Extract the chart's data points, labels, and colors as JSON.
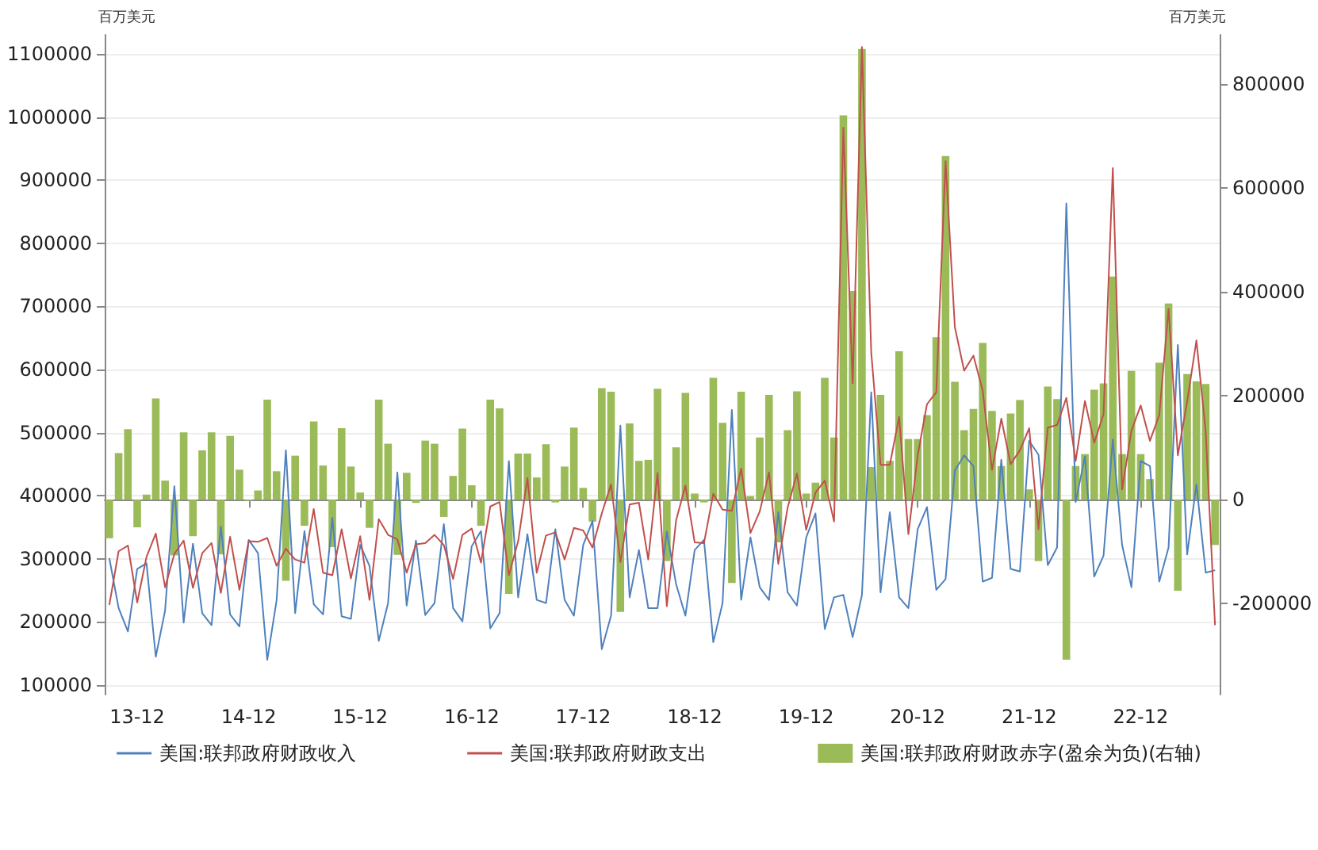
{
  "chart_data": {
    "type": "bar",
    "ylabel": "百万美元",
    "y2label": "百万美元",
    "categories": [
      null,
      null,
      null,
      "13-12",
      null,
      null,
      null,
      null,
      null,
      null,
      null,
      null,
      null,
      null,
      null,
      "14-12",
      null,
      null,
      null,
      null,
      null,
      null,
      null,
      null,
      null,
      null,
      null,
      "15-12",
      null,
      null,
      null,
      null,
      null,
      null,
      null,
      null,
      null,
      null,
      null,
      "16-12",
      null,
      null,
      null,
      null,
      null,
      null,
      null,
      null,
      null,
      null,
      null,
      "17-12",
      null,
      null,
      null,
      null,
      null,
      null,
      null,
      null,
      null,
      null,
      null,
      "18-12",
      null,
      null,
      null,
      null,
      null,
      null,
      null,
      null,
      null,
      null,
      null,
      "19-12",
      null,
      null,
      null,
      null,
      null,
      null,
      null,
      null,
      null,
      null,
      null,
      "20-12",
      null,
      null,
      null,
      null,
      null,
      null,
      null,
      null,
      null,
      null,
      null,
      "21-12",
      null,
      null,
      null,
      null,
      null,
      null,
      null,
      null,
      null,
      null,
      null,
      "22-12",
      null,
      null,
      null,
      null,
      null,
      null,
      null,
      null
    ],
    "series": [
      {
        "name": "美国:联邦政府财政收入",
        "type": "line",
        "color": "#4f81bd",
        "values": [
          301000,
          222000,
          185000,
          284000,
          293000,
          145000,
          218000,
          415000,
          199000,
          324000,
          214000,
          195000,
          351000,
          212000,
          193000,
          330000,
          309000,
          140000,
          234000,
          472000,
          214000,
          344000,
          228000,
          212000,
          365000,
          209000,
          205000,
          322000,
          289000,
          170000,
          230000,
          437000,
          226000,
          329000,
          211000,
          230000,
          355000,
          222000,
          201000,
          320000,
          344000,
          190000,
          214000,
          455000,
          239000,
          339000,
          235000,
          230000,
          347000,
          235000,
          210000,
          322000,
          360000,
          157000,
          210000,
          511000,
          239000,
          314000,
          222000,
          222000,
          343000,
          260000,
          210000,
          314000,
          330000,
          168000,
          230000,
          536000,
          235000,
          334000,
          255000,
          235000,
          374000,
          247000,
          226000,
          334000,
          372000,
          189000,
          239000,
          243000,
          176000,
          243000,
          564000,
          247000,
          374000,
          239000,
          222000,
          347000,
          382000,
          251000,
          268000,
          440000,
          464000,
          447000,
          264000,
          270000,
          457000,
          284000,
          280000,
          487000,
          465000,
          290000,
          318000,
          863000,
          390000,
          462000,
          272000,
          305000,
          489000,
          322000,
          255000,
          455000,
          447000,
          264000,
          318000,
          639000,
          307000,
          418000,
          278000,
          282000
        ]
      },
      {
        "name": "美国:联邦政府财政支出",
        "type": "line",
        "color": "#c0504d",
        "values": [
          227000,
          312000,
          321000,
          231000,
          303000,
          340000,
          255000,
          308000,
          329000,
          254000,
          309000,
          325000,
          246000,
          335000,
          251000,
          328000,
          327000,
          333000,
          289000,
          316000,
          299000,
          294000,
          379000,
          278000,
          274000,
          347000,
          269000,
          336000,
          235000,
          363000,
          338000,
          331000,
          278000,
          323000,
          325000,
          338000,
          322000,
          268000,
          338000,
          348000,
          294000,
          383000,
          390000,
          274000,
          328000,
          428000,
          278000,
          337000,
          342000,
          299000,
          349000,
          345000,
          318000,
          372000,
          418000,
          295000,
          386000,
          389000,
          299000,
          436000,
          225000,
          361000,
          416000,
          326000,
          325000,
          403000,
          378000,
          376000,
          443000,
          341000,
          375000,
          437000,
          292000,
          381000,
          435000,
          346000,
          405000,
          424000,
          359000,
          983000,
          578000,
          1111000,
          627000,
          449000,
          449000,
          525000,
          339000,
          464000,
          545000,
          564000,
          930000,
          667000,
          598000,
          622000,
          566000,
          441000,
          522000,
          450000,
          472000,
          507000,
          347000,
          508000,
          512000,
          555000,
          455000,
          550000,
          484000,
          529000,
          919000,
          410000,
          503000,
          543000,
          487000,
          528000,
          696000,
          464000,
          549000,
          646000,
          501000,
          195000
        ]
      },
      {
        "name": "美国:联邦政府财政赤字(盈余为负)(右轴)",
        "axis": "y2",
        "color": "#9bbb59",
        "values": [
          -74000,
          90000,
          136000,
          -53000,
          10000,
          195000,
          37000,
          -107000,
          130000,
          -70000,
          95000,
          130000,
          -105000,
          123000,
          58000,
          -2000,
          18000,
          193000,
          55000,
          -156000,
          85000,
          -50000,
          151000,
          66000,
          -91000,
          138000,
          64000,
          14000,
          -54000,
          193000,
          108000,
          -106000,
          52000,
          -6000,
          114000,
          108000,
          -33000,
          46000,
          137000,
          28000,
          -50000,
          193000,
          176000,
          -181000,
          89000,
          89000,
          43000,
          107000,
          -5000,
          64000,
          139000,
          23000,
          -42000,
          215000,
          208000,
          -216000,
          147000,
          75000,
          77000,
          214000,
          -118000,
          101000,
          206000,
          12000,
          -5000,
          235000,
          148000,
          -160000,
          208000,
          7000,
          120000,
          202000,
          -82000,
          134000,
          209000,
          12000,
          33000,
          235000,
          120000,
          740000,
          402000,
          868000,
          63000,
          202000,
          75000,
          286000,
          117000,
          117000,
          163000,
          313000,
          662000,
          227000,
          134000,
          175000,
          302000,
          171000,
          65000,
          166000,
          192000,
          20000,
          -118000,
          218000,
          194000,
          -308000,
          65000,
          88000,
          212000,
          224000,
          430000,
          88000,
          248000,
          88000,
          40000,
          264000,
          378000,
          -175000,
          242000,
          228000,
          223000,
          -87000
        ]
      }
    ],
    "ylim": [
      85000,
      1130000
    ],
    "yticks": [
      100000,
      200000,
      300000,
      400000,
      500000,
      600000,
      700000,
      800000,
      900000,
      1000000,
      1100000
    ],
    "y2lim": [
      -375000,
      895000
    ],
    "y2ticks": [
      -200000,
      0,
      200000,
      400000,
      600000,
      800000
    ],
    "grid": "y",
    "legend": "bottom",
    "marker": "none"
  }
}
